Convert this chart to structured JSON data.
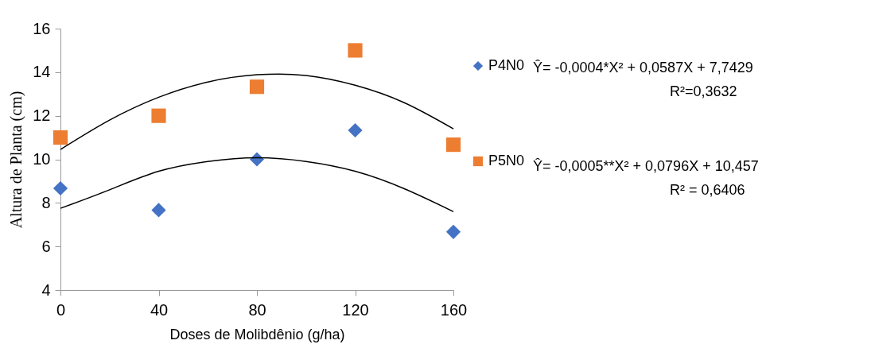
{
  "chart_data": {
    "type": "scatter",
    "xlabel": "Doses de Molibdênio (g/ha)",
    "ylabel": "Altura de Planta (cm)",
    "x": [
      0,
      40,
      80,
      120,
      160
    ],
    "series": [
      {
        "name": "P4N0",
        "color": "#4472c4",
        "marker": "diamond",
        "values": [
          8.67,
          7.67,
          10.0,
          11.33,
          6.67
        ]
      },
      {
        "name": "P5N0",
        "color": "#ed7d31",
        "marker": "square",
        "values": [
          11.0,
          12.0,
          13.33,
          15.0,
          10.67
        ]
      },
      {
        "type": "line",
        "color": "#000000",
        "x": [
          0,
          20,
          40,
          60,
          80,
          100,
          120,
          140,
          160
        ],
        "values": [
          7.75,
          8.6,
          9.45,
          9.9,
          10.07,
          9.9,
          9.45,
          8.65,
          7.6
        ]
      },
      {
        "type": "line",
        "color": "#000000",
        "x": [
          0,
          20,
          40,
          60,
          80,
          100,
          120,
          140,
          160
        ],
        "values": [
          10.45,
          11.8,
          12.85,
          13.55,
          13.88,
          13.85,
          13.4,
          12.6,
          11.4
        ]
      }
    ],
    "annotations": [
      "Ŷ= -0,0004*X² + 0,0587X +     7,7429",
      "R²=0,3632",
      "Ŷ= -0,0005**X² + 0,0796X + 10,457",
      "R² = 0,6406"
    ],
    "xlim": [
      0,
      160
    ],
    "xticks": [
      0,
      40,
      80,
      120,
      160
    ],
    "ylim": [
      4,
      16
    ],
    "yticks": [
      4,
      6,
      8,
      10,
      12,
      14,
      16
    ],
    "grid": false,
    "legend": "right"
  }
}
